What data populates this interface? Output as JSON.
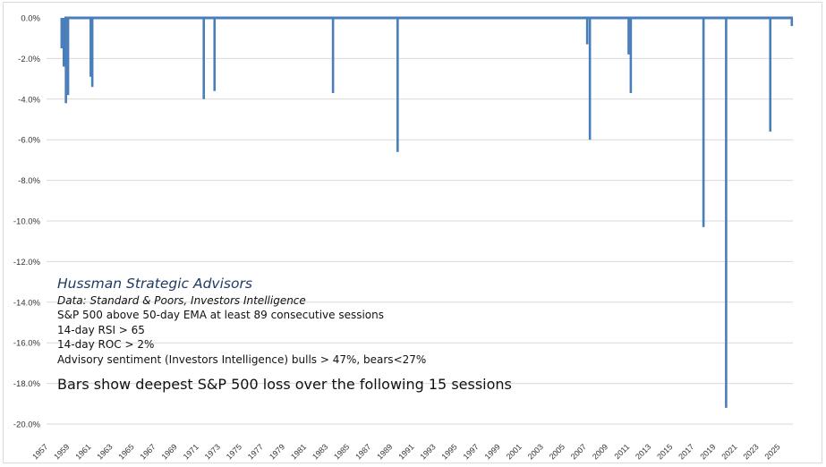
{
  "chart_data": {
    "type": "bar",
    "title": "",
    "xlabel": "",
    "ylabel": "",
    "ylim": [
      -20,
      0
    ],
    "y_ticks": [
      "0.0%",
      "-2.0%",
      "-4.0%",
      "-6.0%",
      "-8.0%",
      "-10.0%",
      "-12.0%",
      "-14.0%",
      "-16.0%",
      "-18.0%",
      "-20.0%"
    ],
    "x_ticks": [
      "1957",
      "1959",
      "1961",
      "1963",
      "1965",
      "1967",
      "1969",
      "1971",
      "1973",
      "1975",
      "1977",
      "1979",
      "1981",
      "1983",
      "1985",
      "1987",
      "1989",
      "1991",
      "1993",
      "1995",
      "1997",
      "1999",
      "2001",
      "2003",
      "2005",
      "2007",
      "2009",
      "2011",
      "2013",
      "2015",
      "2017",
      "2019",
      "2021",
      "2023",
      "2025"
    ],
    "xlim": [
      1957,
      2026.3
    ],
    "grid": true,
    "bar_color": "#4a7ebb",
    "points": [
      {
        "x": 1958.4,
        "y": -1.5
      },
      {
        "x": 1958.6,
        "y": -2.4
      },
      {
        "x": 1958.8,
        "y": -4.2
      },
      {
        "x": 1959.0,
        "y": -3.8
      },
      {
        "x": 1961.1,
        "y": -2.9
      },
      {
        "x": 1961.25,
        "y": -3.4
      },
      {
        "x": 1971.6,
        "y": -4.0
      },
      {
        "x": 1972.6,
        "y": -3.6
      },
      {
        "x": 1983.6,
        "y": -3.7
      },
      {
        "x": 1989.6,
        "y": -6.6
      },
      {
        "x": 2007.2,
        "y": -1.3
      },
      {
        "x": 2007.45,
        "y": -6.0
      },
      {
        "x": 2011.05,
        "y": -1.8
      },
      {
        "x": 2011.25,
        "y": -3.7
      },
      {
        "x": 2018.0,
        "y": -10.3
      },
      {
        "x": 2020.1,
        "y": -19.2
      },
      {
        "x": 2024.2,
        "y": -5.6
      },
      {
        "x": 2026.2,
        "y": -0.4
      }
    ]
  },
  "notes": {
    "org": "Hussman Strategic Advisors",
    "source": "Data: Standard & Poors, Investors Intelligence",
    "lines": [
      "S&P 500 above 50-day EMA at least 89 consecutive sessions",
      "14-day RSI > 65",
      "14-day ROC > 2%",
      "Advisory sentiment (Investors Intelligence) bulls > 47%,  bears<27%"
    ],
    "caption": "Bars show deepest S&P 500 loss over the following 15 sessions"
  }
}
